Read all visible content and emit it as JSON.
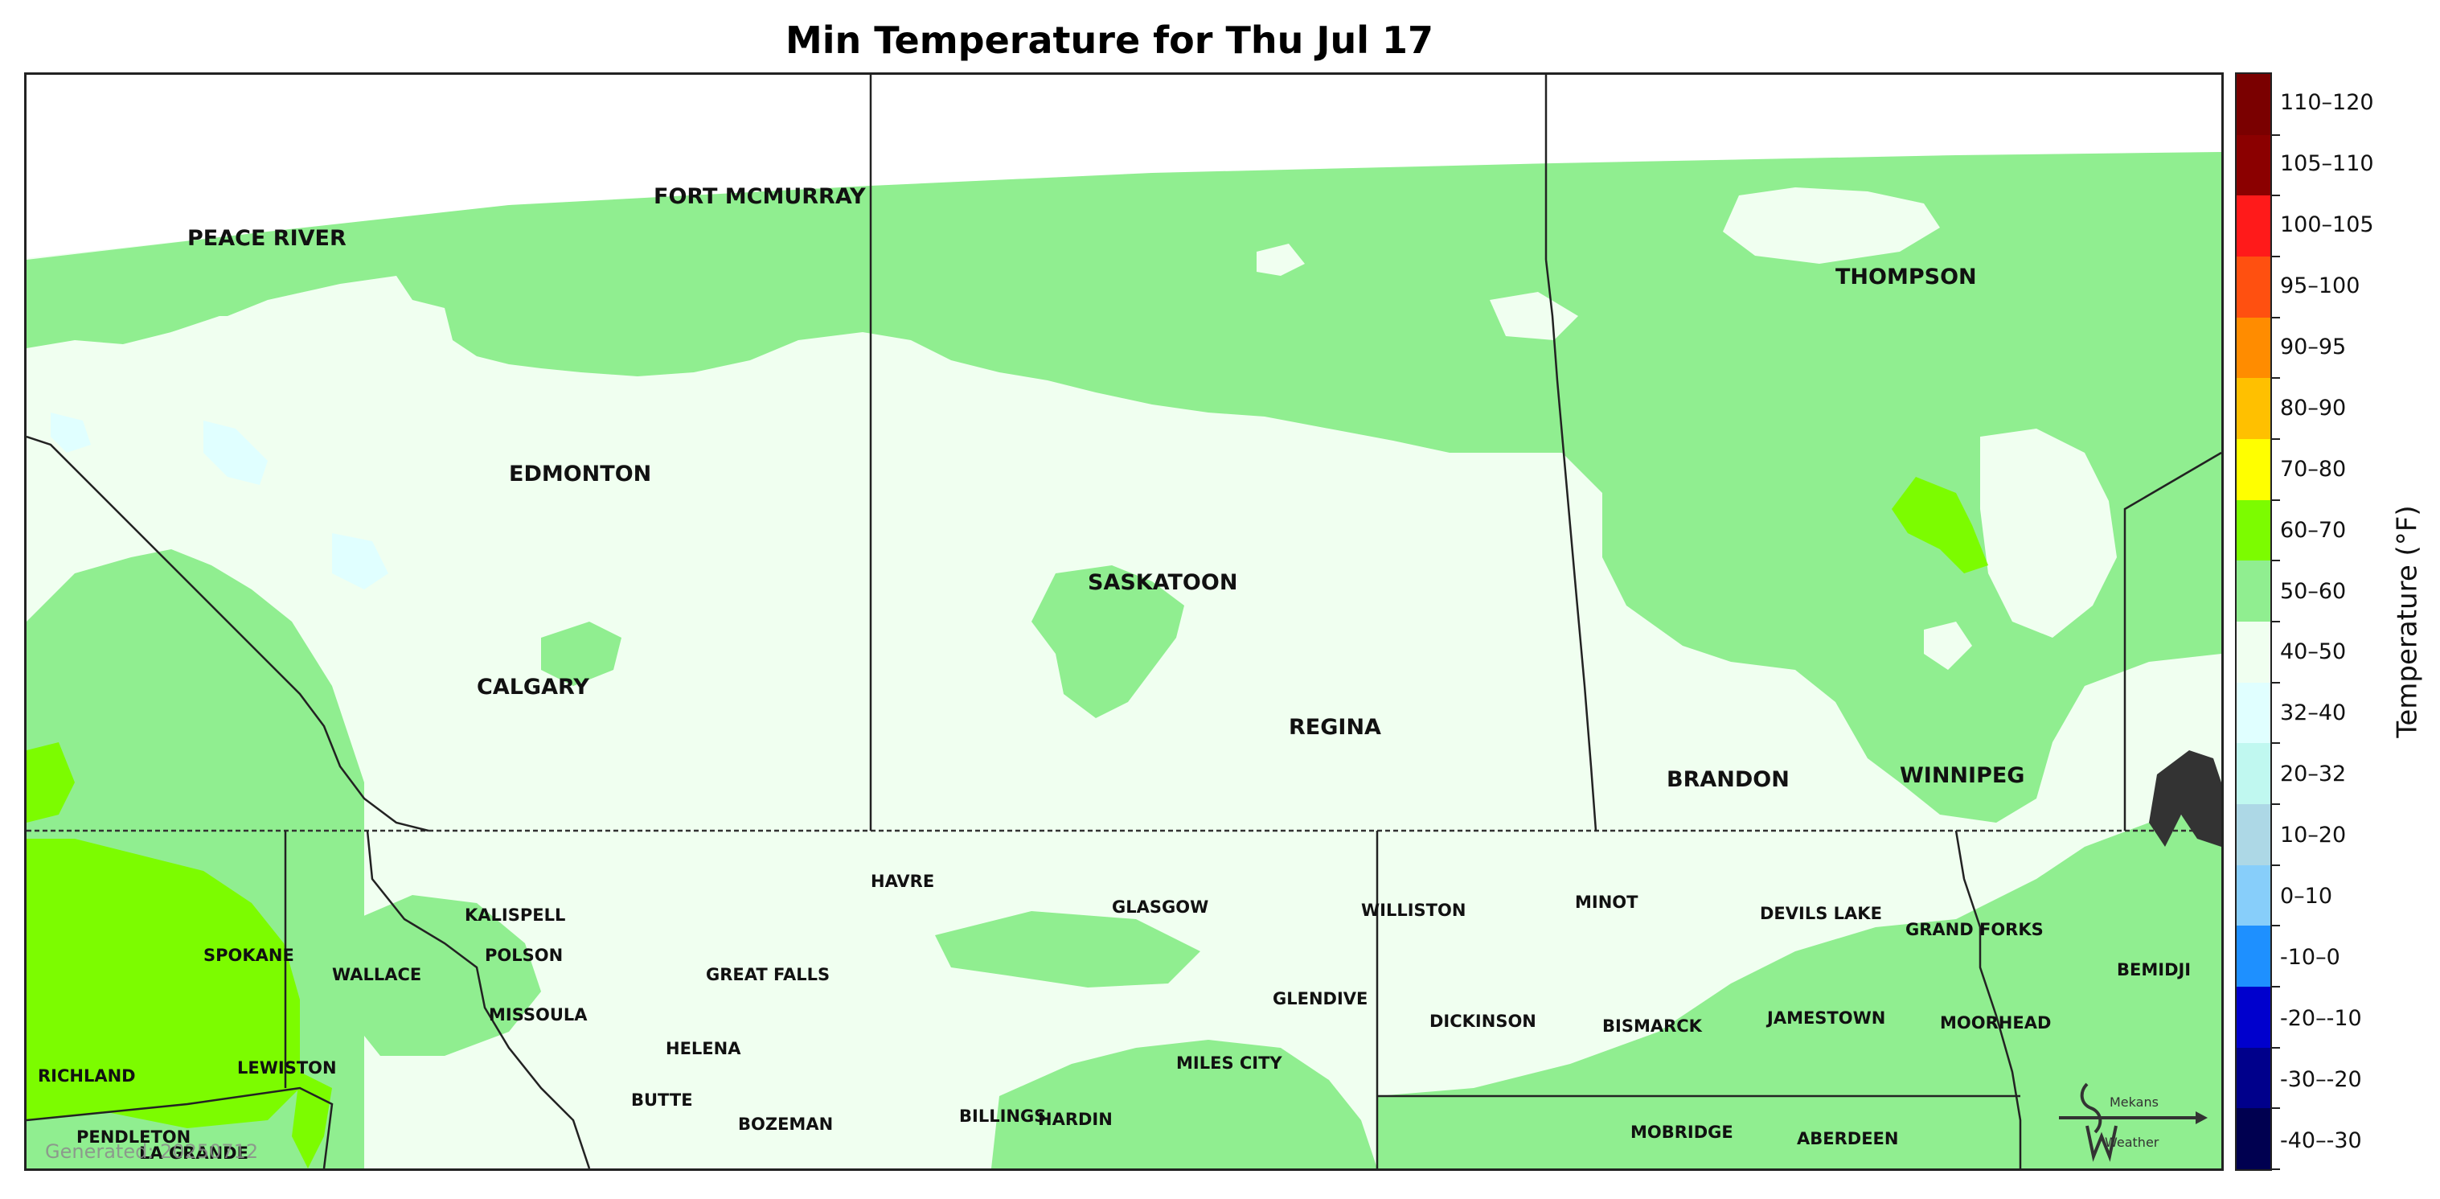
{
  "title": "Min Temperature for Thu Jul 17",
  "generated": "Generated: 20250712",
  "legend": {
    "title": "Temperature (°F)",
    "bins": [
      {
        "label": "110–120",
        "color": "#7a0000"
      },
      {
        "label": "105–110",
        "color": "#8b0000"
      },
      {
        "label": "100–105",
        "color": "#ff1a1a"
      },
      {
        "label": "95–100",
        "color": "#ff5010"
      },
      {
        "label": "90–95",
        "color": "#ff8c00"
      },
      {
        "label": "80–90",
        "color": "#ffc000"
      },
      {
        "label": "70–80",
        "color": "#ffff00"
      },
      {
        "label": "60–70",
        "color": "#7cfc00"
      },
      {
        "label": "50–60",
        "color": "#90ee90"
      },
      {
        "label": "40–50",
        "color": "#f0fff0"
      },
      {
        "label": "32–40",
        "color": "#e0ffff"
      },
      {
        "label": "20–32",
        "color": "#c0f8f0"
      },
      {
        "label": "10–20",
        "color": "#add8e6"
      },
      {
        "label": "0–10",
        "color": "#87cefa"
      },
      {
        "label": "-10–0",
        "color": "#1e90ff"
      },
      {
        "label": "-20–-10",
        "color": "#0000cd"
      },
      {
        "label": "-30–-20",
        "color": "#00008b"
      },
      {
        "label": "-40–-30",
        "color": "#000050"
      }
    ]
  },
  "cities": [
    {
      "name": "PEACE RIVER",
      "size": "lg"
    },
    {
      "name": "FORT MCMURRAY",
      "size": "lg"
    },
    {
      "name": "EDMONTON",
      "size": "lg"
    },
    {
      "name": "CALGARY",
      "size": "lg"
    },
    {
      "name": "SASKATOON",
      "size": "lg"
    },
    {
      "name": "REGINA",
      "size": "lg"
    },
    {
      "name": "THOMPSON",
      "size": "lg"
    },
    {
      "name": "BRANDON",
      "size": "lg"
    },
    {
      "name": "WINNIPEG",
      "size": "lg"
    },
    {
      "name": "KALISPELL",
      "size": "sm"
    },
    {
      "name": "POLSON",
      "size": "sm"
    },
    {
      "name": "MISSOULA",
      "size": "sm"
    },
    {
      "name": "SPOKANE",
      "size": "sm"
    },
    {
      "name": "WALLACE",
      "size": "sm"
    },
    {
      "name": "LEWISTON",
      "size": "sm"
    },
    {
      "name": "RICHLAND",
      "size": "sm"
    },
    {
      "name": "PENDLETON",
      "size": "sm"
    },
    {
      "name": "LA GRANDE",
      "size": "sm"
    },
    {
      "name": "HAVRE",
      "size": "sm"
    },
    {
      "name": "GREAT FALLS",
      "size": "sm"
    },
    {
      "name": "HELENA",
      "size": "sm"
    },
    {
      "name": "BUTTE",
      "size": "sm"
    },
    {
      "name": "BOZEMAN",
      "size": "sm"
    },
    {
      "name": "BILLINGS",
      "size": "sm"
    },
    {
      "name": "HARDIN",
      "size": "sm"
    },
    {
      "name": "GLASGOW",
      "size": "sm"
    },
    {
      "name": "GLENDIVE",
      "size": "sm"
    },
    {
      "name": "MILES CITY",
      "size": "sm"
    },
    {
      "name": "WILLISTON",
      "size": "sm"
    },
    {
      "name": "MINOT",
      "size": "sm"
    },
    {
      "name": "DEVILS LAKE",
      "size": "sm"
    },
    {
      "name": "GRAND FORKS",
      "size": "sm"
    },
    {
      "name": "DICKINSON",
      "size": "sm"
    },
    {
      "name": "BISMARCK",
      "size": "sm"
    },
    {
      "name": "JAMESTOWN",
      "size": "sm"
    },
    {
      "name": "MOORHEAD",
      "size": "sm"
    },
    {
      "name": "BEMIDJI",
      "size": "sm"
    },
    {
      "name": "MOBRIDGE",
      "size": "sm"
    },
    {
      "name": "ABERDEEN",
      "size": "sm"
    }
  ],
  "logo": {
    "line1": "Mekans",
    "line2": "Weather"
  }
}
